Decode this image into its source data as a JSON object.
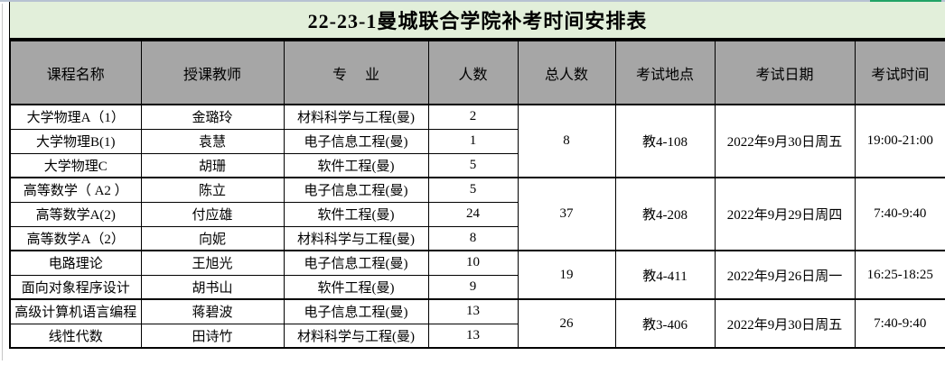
{
  "title": "22-23-1曼城联合学院补考时间安排表",
  "columns": {
    "course": "课程名称",
    "teacher": "授课教师",
    "major": "专业",
    "count": "人数",
    "total": "总人数",
    "location": "考试地点",
    "date": "考试日期",
    "time": "考试时间"
  },
  "rows": [
    {
      "course": "大学物理A（1）",
      "teacher": "金璐玲",
      "major": "材料科学与工程(曼)",
      "count": "2"
    },
    {
      "course": "大学物理B(1)",
      "teacher": "袁慧",
      "major": "电子信息工程(曼)",
      "count": "1"
    },
    {
      "course": "大学物理C",
      "teacher": "胡珊",
      "major": "软件工程(曼)",
      "count": "5"
    },
    {
      "course": "高等数学（ A2 ）",
      "teacher": "陈立",
      "major": "电子信息工程(曼)",
      "count": "5"
    },
    {
      "course": "高等数学A(2)",
      "teacher": "付应雄",
      "major": "软件工程(曼)",
      "count": "24"
    },
    {
      "course": "高等数学A（2）",
      "teacher": "向妮",
      "major": "材料科学与工程(曼)",
      "count": "8"
    },
    {
      "course": "电路理论",
      "teacher": "王旭光",
      "major": "电子信息工程(曼)",
      "count": "10"
    },
    {
      "course": "面向对象程序设计",
      "teacher": "胡书山",
      "major": "软件工程(曼)",
      "count": "9"
    },
    {
      "course": "高级计算机语言编程",
      "teacher": "蒋碧波",
      "major": "电子信息工程(曼)",
      "count": "13"
    },
    {
      "course": "线性代数",
      "teacher": "田诗竹",
      "major": "材料科学与工程(曼)",
      "count": "13"
    }
  ],
  "groups": [
    {
      "rowspan": 3,
      "total": "8",
      "location": "教4-108",
      "date": "2022年9月30日周五",
      "time": "19:00-21:00"
    },
    {
      "rowspan": 3,
      "total": "37",
      "location": "教4-208",
      "date": "2022年9月29日周四",
      "time": "7:40-9:40"
    },
    {
      "rowspan": 2,
      "total": "19",
      "location": "教4-411",
      "date": "2022年9月26日周一",
      "time": "16:25-18:25"
    },
    {
      "rowspan": 2,
      "total": "26",
      "location": "教3-406",
      "date": "2022年9月30日周五",
      "time": "7:40-9:40"
    }
  ],
  "colors": {
    "title_background": "#e2efda",
    "header_background": "#a6a6a6",
    "border": "#000000",
    "top_strip": "#b7c2d2",
    "green_accent": "#21a366"
  }
}
